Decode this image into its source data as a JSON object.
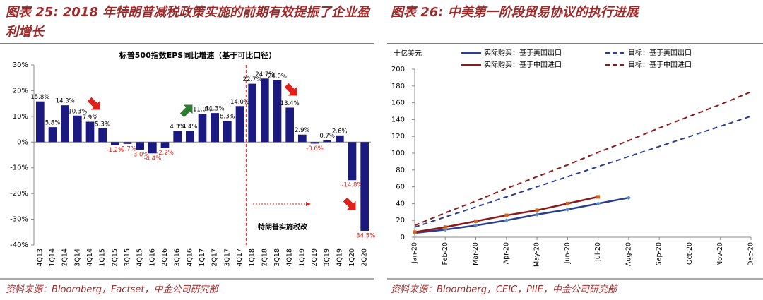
{
  "chart_data": [
    {
      "type": "bar",
      "caption": "图表 25: 2018 年特朗普减税政策实施的前期有效提振了企业盈利增长",
      "title": "标普500指数EPS同比增速（基于可比口径）",
      "source": "资料来源：Bloomberg，Factset，中金公司研究部",
      "annotation": "特朗普实施税改",
      "color": "#1a1a80",
      "negative_label_color": "#e0201b",
      "categories": [
        "4Q13",
        "1Q14",
        "2Q14",
        "3Q14",
        "4Q14",
        "1Q15",
        "2Q15",
        "3Q15",
        "4Q15",
        "1Q16",
        "2Q16",
        "3Q16",
        "4Q16",
        "1Q17",
        "2Q17",
        "3Q17",
        "4Q17",
        "1Q18",
        "2Q18",
        "3Q18",
        "4Q18",
        "1Q19",
        "2Q19",
        "3Q19",
        "4Q19",
        "1Q20",
        "2Q20"
      ],
      "values": [
        15.8,
        5.8,
        14.3,
        10.3,
        7.9,
        5.3,
        -1.2,
        -0.7,
        -3.0,
        -4.4,
        -2.2,
        4.3,
        4.4,
        11.0,
        11.3,
        8.3,
        14.0,
        22.7,
        24.7,
        24.0,
        13.4,
        2.9,
        -0.6,
        0.7,
        2.6,
        -14.8,
        -34.5
      ],
      "value_labels": [
        "15.8%",
        "5.8%",
        "14.3%",
        "10.3%",
        "7.9%",
        "5.3%",
        "-1.2%",
        "-0.7%",
        "-3.0%",
        "-4.4%",
        "-2.2%",
        "4.3%",
        "4.4%",
        "11.0%",
        "11.3%",
        "8.3%",
        "14.0%",
        "22.7%",
        "24.7%",
        "24.0%",
        "13.4%",
        "2.9%",
        "-0.6%",
        "0.7%",
        "2.6%",
        "-14.8%",
        "-34.5%"
      ],
      "ylim": [
        -40,
        30
      ],
      "yticks": [
        {
          "value": -40,
          "label": "-40%"
        },
        {
          "value": -30,
          "label": "-30%"
        },
        {
          "value": -20,
          "label": "-20%"
        },
        {
          "value": -10,
          "label": "-10%"
        },
        {
          "value": 0,
          "label": "0%"
        },
        {
          "value": 10,
          "label": "10%"
        },
        {
          "value": 20,
          "label": "20%"
        },
        {
          "value": 30,
          "label": "30%"
        }
      ]
    },
    {
      "type": "line",
      "caption": "图表 26:  中美第一阶段贸易协议的执行进展",
      "y_label": "十亿美元",
      "source": "资料来源：Bloomberg，CEIC，PIIE，中金公司研究部",
      "categories": [
        "Jan-20",
        "Feb-20",
        "Mar-20",
        "Apr-20",
        "May-20",
        "Jun-20",
        "Jul-20",
        "Aug-20",
        "Sep-20",
        "Oct-20",
        "Nov-20",
        "Dec-20"
      ],
      "ylim": [
        0,
        200
      ],
      "yticks": [
        0,
        20,
        40,
        60,
        80,
        100,
        120,
        140,
        160,
        180,
        200
      ],
      "series": [
        {
          "name": "实际购买：基于美国出口",
          "color": "#2a3f8f",
          "dashed": false,
          "marker": "diamond",
          "values": [
            5,
            9,
            14,
            20,
            27,
            33,
            40,
            47,
            null,
            null,
            null,
            null
          ]
        },
        {
          "name": "目标：基于美国出口",
          "color": "#2a3f8f",
          "dashed": true,
          "values": [
            12,
            24,
            36,
            48,
            60,
            72,
            84,
            96,
            108,
            120,
            132,
            144
          ]
        },
        {
          "name": "实际购买：基于中国进口",
          "color": "#8b1a1a",
          "dashed": false,
          "marker": "square",
          "values": [
            6,
            12,
            19,
            26,
            32,
            40,
            48,
            null,
            null,
            null,
            null,
            null
          ]
        },
        {
          "name": "目标：基于中国进口",
          "color": "#8b1a1a",
          "dashed": true,
          "values": [
            14,
            29,
            43,
            58,
            72,
            86,
            101,
            115,
            130,
            144,
            158,
            173
          ]
        }
      ]
    }
  ]
}
